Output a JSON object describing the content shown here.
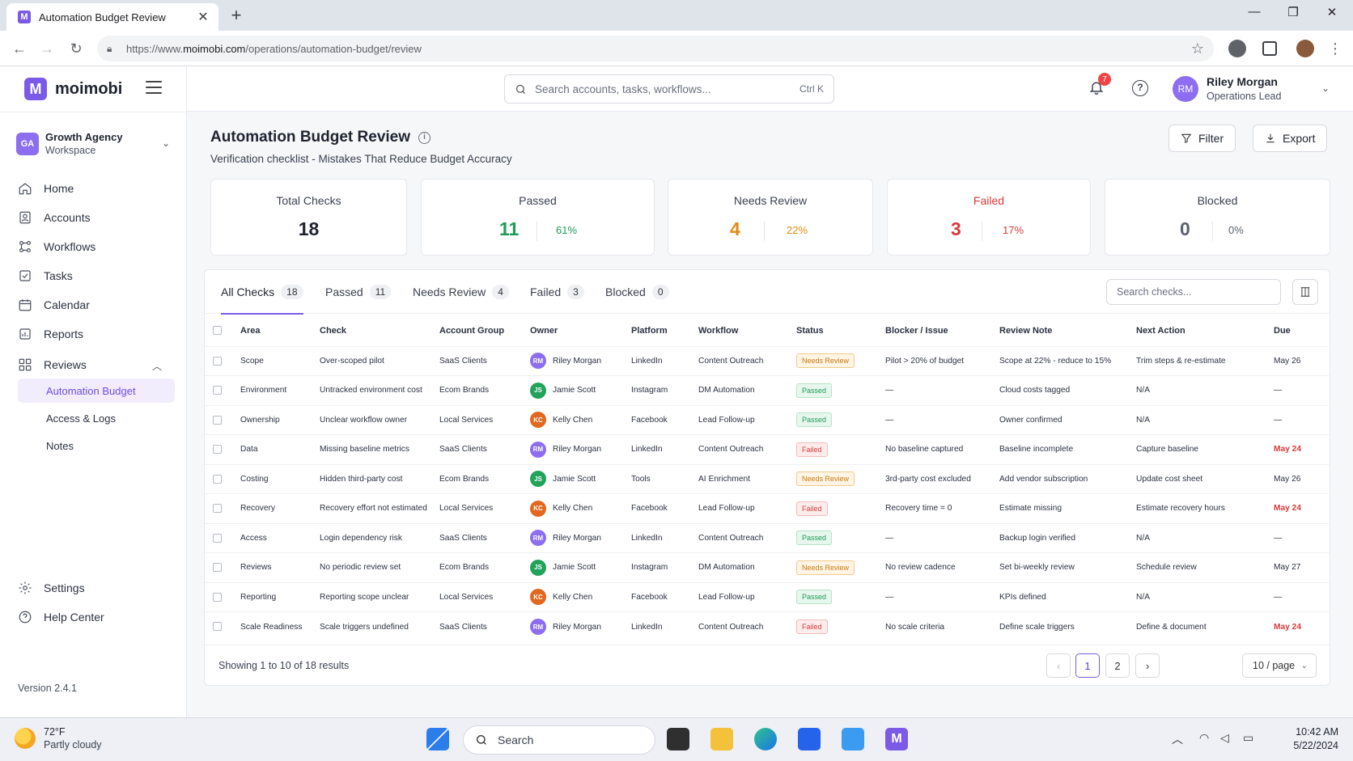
{
  "browser": {
    "tab_title": "Automation Budget Review",
    "url_prefix": "https://www.",
    "url_domain": "moimobi.com",
    "url_path": "/operations/automation-budget/review"
  },
  "brand": {
    "name": "moimobi",
    "logo_letter": "M",
    "accent": "#7b5be6"
  },
  "workspace": {
    "initials": "GA",
    "name": "Growth Agency",
    "sub": "Workspace"
  },
  "nav": {
    "home": "Home",
    "accounts": "Accounts",
    "workflows": "Workflows",
    "tasks": "Tasks",
    "calendar": "Calendar",
    "reports": "Reports",
    "reviews": "Reviews",
    "reviews_children": [
      "Automation Budget",
      "Access & Logs",
      "Notes"
    ],
    "settings": "Settings",
    "help": "Help Center"
  },
  "version": "Version 2.4.1",
  "search": {
    "placeholder": "Search accounts, tasks, workflows...",
    "shortcut": "Ctrl K"
  },
  "notifications": {
    "count": "7"
  },
  "user": {
    "initials": "RM",
    "name": "Riley Morgan",
    "role": "Operations Lead"
  },
  "page": {
    "title": "Automation Budget Review",
    "subtitle": "Verification checklist - Mistakes That Reduce Budget Accuracy",
    "filter_label": "Filter",
    "export_label": "Export"
  },
  "stats": {
    "total": {
      "label": "Total Checks",
      "value": "18"
    },
    "passed": {
      "label": "Passed",
      "value": "11",
      "pct": "61%",
      "color": "#1e9b57"
    },
    "needs": {
      "label": "Needs Review",
      "value": "4",
      "pct": "22%",
      "color": "#e08a12"
    },
    "failed": {
      "label": "Failed",
      "value": "3",
      "pct": "17%",
      "color": "#d63a3a"
    },
    "blocked": {
      "label": "Blocked",
      "value": "0",
      "pct": "0%",
      "color": "#5a6070"
    }
  },
  "filter_tabs": [
    {
      "label": "All Checks",
      "count": "18"
    },
    {
      "label": "Passed",
      "count": "11"
    },
    {
      "label": "Needs Review",
      "count": "4"
    },
    {
      "label": "Failed",
      "count": "3"
    },
    {
      "label": "Blocked",
      "count": "0"
    }
  ],
  "table_search_placeholder": "Search checks...",
  "table": {
    "columns": [
      "Area",
      "Check",
      "Account Group",
      "Owner",
      "Platform",
      "Workflow",
      "Status",
      "Blocker / Issue",
      "Review Note",
      "Next Action",
      "Due"
    ],
    "rows": [
      {
        "area": "Scope",
        "check": "Over-scoped pilot",
        "group": "SaaS Clients",
        "owner_initials": "RM",
        "owner": "Riley Morgan",
        "platform": "LinkedIn",
        "workflow": "Content Outreach",
        "status": "Needs Review",
        "blocker": "Pilot > 20% of budget",
        "note": "Scope at 22% - reduce to 15%",
        "next": "Trim steps & re-estimate",
        "due": "May 26"
      },
      {
        "area": "Environment",
        "check": "Untracked environment cost",
        "group": "Ecom Brands",
        "owner_initials": "JS",
        "owner": "Jamie Scott",
        "platform": "Instagram",
        "workflow": "DM Automation",
        "status": "Passed",
        "blocker": "—",
        "note": "Cloud costs tagged",
        "next": "N/A",
        "due": "—"
      },
      {
        "area": "Ownership",
        "check": "Unclear workflow owner",
        "group": "Local Services",
        "owner_initials": "KC",
        "owner": "Kelly Chen",
        "platform": "Facebook",
        "workflow": "Lead Follow-up",
        "status": "Passed",
        "blocker": "—",
        "note": "Owner confirmed",
        "next": "N/A",
        "due": "—"
      },
      {
        "area": "Data",
        "check": "Missing baseline metrics",
        "group": "SaaS Clients",
        "owner_initials": "RM",
        "owner": "Riley Morgan",
        "platform": "LinkedIn",
        "workflow": "Content Outreach",
        "status": "Failed",
        "blocker": "No baseline captured",
        "note": "Baseline incomplete",
        "next": "Capture baseline",
        "due": "May 24"
      },
      {
        "area": "Costing",
        "check": "Hidden third-party cost",
        "group": "Ecom Brands",
        "owner_initials": "JS",
        "owner": "Jamie Scott",
        "platform": "Tools",
        "workflow": "AI Enrichment",
        "status": "Needs Review",
        "blocker": "3rd-party cost excluded",
        "note": "Add vendor subscription",
        "next": "Update cost sheet",
        "due": "May 26"
      },
      {
        "area": "Recovery",
        "check": "Recovery effort not estimated",
        "group": "Local Services",
        "owner_initials": "KC",
        "owner": "Kelly Chen",
        "platform": "Facebook",
        "workflow": "Lead Follow-up",
        "status": "Failed",
        "blocker": "Recovery time = 0",
        "note": "Estimate missing",
        "next": "Estimate recovery hours",
        "due": "May 24"
      },
      {
        "area": "Access",
        "check": "Login dependency risk",
        "group": "SaaS Clients",
        "owner_initials": "RM",
        "owner": "Riley Morgan",
        "platform": "LinkedIn",
        "workflow": "Content Outreach",
        "status": "Passed",
        "blocker": "—",
        "note": "Backup login verified",
        "next": "N/A",
        "due": "—"
      },
      {
        "area": "Reviews",
        "check": "No periodic review set",
        "group": "Ecom Brands",
        "owner_initials": "JS",
        "owner": "Jamie Scott",
        "platform": "Instagram",
        "workflow": "DM Automation",
        "status": "Needs Review",
        "blocker": "No review cadence",
        "note": "Set bi-weekly review",
        "next": "Schedule review",
        "due": "May 27"
      },
      {
        "area": "Reporting",
        "check": "Reporting scope unclear",
        "group": "Local Services",
        "owner_initials": "KC",
        "owner": "Kelly Chen",
        "platform": "Facebook",
        "workflow": "Lead Follow-up",
        "status": "Passed",
        "blocker": "—",
        "note": "KPIs defined",
        "next": "N/A",
        "due": "—"
      },
      {
        "area": "Scale Readiness",
        "check": "Scale triggers undefined",
        "group": "SaaS Clients",
        "owner_initials": "RM",
        "owner": "Riley Morgan",
        "platform": "LinkedIn",
        "workflow": "Content Outreach",
        "status": "Failed",
        "blocker": "No scale criteria",
        "note": "Define scale triggers",
        "next": "Define & document",
        "due": "May 24"
      }
    ]
  },
  "pagination": {
    "showing": "Showing 1 to 10 of 18 results",
    "pages": [
      "1",
      "2"
    ],
    "per_page": "10 / page"
  },
  "taskbar": {
    "temp": "72°F",
    "condition": "Partly cloudy",
    "search": "Search",
    "time": "10:42 AM",
    "date": "5/22/2024"
  },
  "owner_colors": {
    "RM": "#8d6ef0",
    "JS": "#22a35a",
    "KC": "#e2681f"
  }
}
